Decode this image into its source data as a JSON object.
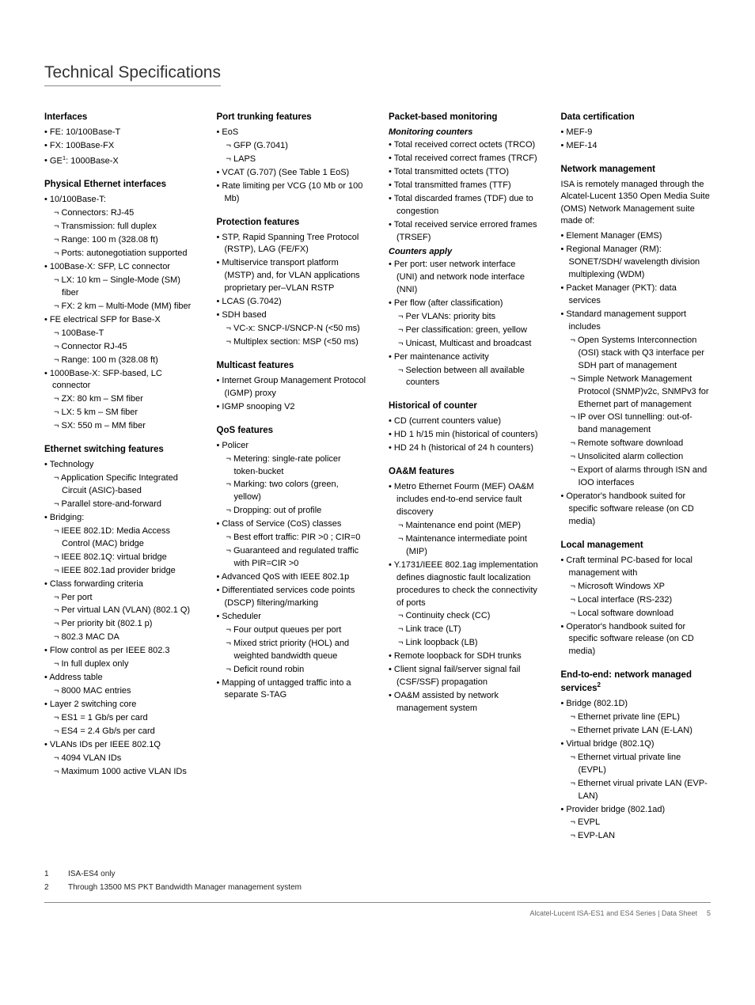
{
  "title": "Technical Specifications",
  "columns": [
    [
      {
        "type": "h1",
        "text": "Interfaces"
      },
      {
        "type": "b",
        "text": "FE: 10/100Base-T"
      },
      {
        "type": "b",
        "text": "FX: 100Base-FX"
      },
      {
        "type": "b",
        "html": "GE<sup>1</sup>: 1000Base-X"
      },
      {
        "type": "h1",
        "text": "Physical Ethernet interfaces"
      },
      {
        "type": "b",
        "text": "10/100Base-T:"
      },
      {
        "type": "s",
        "text": "Connectors: RJ-45"
      },
      {
        "type": "s",
        "text": "Transmission: full duplex"
      },
      {
        "type": "s",
        "text": "Range: 100 m (328.08 ft)"
      },
      {
        "type": "s",
        "text": "Ports: autonegotiation supported"
      },
      {
        "type": "b",
        "text": "100Base-X: SFP, LC connector"
      },
      {
        "type": "s",
        "text": "LX: 10 km – Single-Mode (SM) fiber"
      },
      {
        "type": "s",
        "text": "FX: 2 km – Multi-Mode (MM) fiber"
      },
      {
        "type": "b",
        "text": "FE electrical SFP for Base-X"
      },
      {
        "type": "s",
        "text": "100Base-T"
      },
      {
        "type": "s",
        "text": "Connector RJ-45"
      },
      {
        "type": "s",
        "text": "Range: 100 m (328.08 ft)"
      },
      {
        "type": "b",
        "text": "1000Base-X: SFP-based, LC connector"
      },
      {
        "type": "s",
        "text": "ZX: 80 km – SM fiber"
      },
      {
        "type": "s",
        "text": "LX: 5 km – SM fiber"
      },
      {
        "type": "s",
        "text": "SX: 550 m – MM fiber"
      },
      {
        "type": "h1",
        "text": "Ethernet switching features"
      },
      {
        "type": "b",
        "text": "Technology"
      },
      {
        "type": "s",
        "text": "Application Specific Integrated Circuit (ASIC)-based"
      },
      {
        "type": "s",
        "text": "Parallel store-and-forward"
      },
      {
        "type": "b",
        "text": "Bridging:"
      },
      {
        "type": "s",
        "text": "IEEE 802.1D: Media Access Control (MAC) bridge"
      },
      {
        "type": "s",
        "text": "IEEE 802.1Q: virtual bridge"
      },
      {
        "type": "s",
        "text": "IEEE 802.1ad provider bridge"
      },
      {
        "type": "b",
        "text": "Class forwarding criteria"
      },
      {
        "type": "s",
        "text": "Per port"
      },
      {
        "type": "s",
        "text": "Per virtual LAN (VLAN) (802.1 Q)"
      },
      {
        "type": "s",
        "text": "Per priority bit (802.1 p)"
      },
      {
        "type": "s",
        "text": "802.3 MAC DA"
      },
      {
        "type": "b",
        "text": "Flow control as per IEEE 802.3"
      },
      {
        "type": "s",
        "text": "In full duplex only"
      },
      {
        "type": "b",
        "text": "Address table"
      },
      {
        "type": "s",
        "text": "8000 MAC entries"
      },
      {
        "type": "b",
        "text": "Layer 2 switching core"
      },
      {
        "type": "s",
        "text": "ES1 = 1 Gb/s per card"
      },
      {
        "type": "s",
        "text": "ES4 = 2.4 Gb/s per card"
      },
      {
        "type": "b",
        "text": "VLANs IDs per IEEE 802.1Q"
      },
      {
        "type": "s",
        "text": "4094 VLAN IDs"
      },
      {
        "type": "s",
        "text": "Maximum 1000 active VLAN IDs"
      }
    ],
    [
      {
        "type": "h1",
        "text": "Port trunking features"
      },
      {
        "type": "b",
        "text": "EoS"
      },
      {
        "type": "s",
        "text": "GFP (G.7041)"
      },
      {
        "type": "s",
        "text": "LAPS"
      },
      {
        "type": "b",
        "text": "VCAT (G.707) (See Table 1 EoS)"
      },
      {
        "type": "b",
        "text": "Rate limiting per VCG (10 Mb or 100 Mb)"
      },
      {
        "type": "h1",
        "text": "Protection features"
      },
      {
        "type": "b",
        "text": "STP, Rapid Spanning Tree Protocol (RSTP), LAG (FE/FX)"
      },
      {
        "type": "b",
        "text": "Multiservice transport platform (MSTP) and, for VLAN applications proprietary per–VLAN RSTP"
      },
      {
        "type": "b",
        "text": "LCAS (G.7042)"
      },
      {
        "type": "b",
        "text": "SDH based"
      },
      {
        "type": "s",
        "text": "VC-x: SNCP-I/SNCP-N (<50 ms)"
      },
      {
        "type": "s",
        "text": "Multiplex section: MSP (<50 ms)"
      },
      {
        "type": "h1",
        "text": "Multicast features"
      },
      {
        "type": "b",
        "text": "Internet Group Management Protocol (IGMP) proxy"
      },
      {
        "type": "b",
        "text": "IGMP snooping V2"
      },
      {
        "type": "h1",
        "text": "QoS features"
      },
      {
        "type": "b",
        "text": "Policer"
      },
      {
        "type": "s",
        "text": "Metering: single-rate policer token-bucket"
      },
      {
        "type": "s",
        "text": "Marking: two colors (green, yellow)"
      },
      {
        "type": "s",
        "text": "Dropping: out of profile"
      },
      {
        "type": "b",
        "text": "Class of Service (CoS) classes"
      },
      {
        "type": "s",
        "text": "Best effort traffic: PIR >0 ; CIR=0"
      },
      {
        "type": "s",
        "text": "Guaranteed and regulated traffic with PIR=CIR >0"
      },
      {
        "type": "b",
        "text": "Advanced QoS with IEEE 802.1p"
      },
      {
        "type": "b",
        "text": "Differentiated services code points (DSCP) filtering/marking"
      },
      {
        "type": "b",
        "text": "Scheduler"
      },
      {
        "type": "s",
        "text": "Four output queues per port"
      },
      {
        "type": "s",
        "text": "Mixed strict priority (HOL) and weighted bandwidth queue"
      },
      {
        "type": "s",
        "text": "Deficit round robin"
      },
      {
        "type": "b",
        "text": "Mapping of untagged traffic into a separate S-TAG"
      }
    ],
    [
      {
        "type": "h1",
        "text": "Packet-based monitoring"
      },
      {
        "type": "h2",
        "text": "Monitoring counters"
      },
      {
        "type": "b",
        "text": "Total received correct octets (TRCO)"
      },
      {
        "type": "b",
        "text": "Total received correct frames (TRCF)"
      },
      {
        "type": "b",
        "text": "Total transmitted octets (TTO)"
      },
      {
        "type": "b",
        "text": "Total transmitted frames (TTF)"
      },
      {
        "type": "b",
        "text": "Total discarded frames (TDF) due to congestion"
      },
      {
        "type": "b",
        "text": "Total received service errored frames (TRSEF)"
      },
      {
        "type": "h2",
        "text": "Counters apply"
      },
      {
        "type": "b",
        "text": "Per port: user network interface (UNI) and network node interface (NNI)"
      },
      {
        "type": "b",
        "text": "Per flow (after classification)"
      },
      {
        "type": "s",
        "text": "Per VLANs: priority bits"
      },
      {
        "type": "s",
        "text": "Per classification: green, yellow"
      },
      {
        "type": "s",
        "text": "Unicast, Multicast and broadcast"
      },
      {
        "type": "b",
        "text": "Per maintenance activity"
      },
      {
        "type": "s",
        "text": "Selection between all available counters"
      },
      {
        "type": "h1",
        "text": "Historical of counter"
      },
      {
        "type": "b",
        "text": "CD (current counters value)"
      },
      {
        "type": "b",
        "text": "HD 1 h/15 min (historical of counters)"
      },
      {
        "type": "b",
        "text": "HD 24 h (historical of 24 h counters)"
      },
      {
        "type": "h1",
        "text": "OA&M features"
      },
      {
        "type": "b",
        "text": "Metro Ethernet Fourm (MEF) OA&M includes end-to-end service fault discovery"
      },
      {
        "type": "s",
        "text": "Maintenance end point (MEP)"
      },
      {
        "type": "s",
        "text": "Maintenance intermediate point (MIP)"
      },
      {
        "type": "b",
        "text": "Y.1731/IEEE 802.1ag implementation defines diagnostic fault localization procedures to check the connectivity of ports"
      },
      {
        "type": "s",
        "text": "Continuity check (CC)"
      },
      {
        "type": "s",
        "text": "Link trace (LT)"
      },
      {
        "type": "s",
        "text": "Link loopback (LB)"
      },
      {
        "type": "b",
        "text": "Remote loopback for SDH trunks"
      },
      {
        "type": "b",
        "text": "Client signal fail/server signal fail (CSF/SSF) propagation"
      },
      {
        "type": "b",
        "text": "OA&M assisted by network management system"
      }
    ],
    [
      {
        "type": "h1",
        "text": "Data certification"
      },
      {
        "type": "b",
        "text": "MEF-9"
      },
      {
        "type": "b",
        "text": "MEF-14"
      },
      {
        "type": "h1",
        "text": "Network management"
      },
      {
        "type": "intro",
        "text": "ISA is remotely managed through the Alcatel-Lucent 1350 Open Media Suite (OMS) Network Management suite made of:"
      },
      {
        "type": "b",
        "text": "Element Manager (EMS)"
      },
      {
        "type": "b",
        "text": "Regional Manager (RM): SONET/SDH/ wavelength division multiplexing (WDM)"
      },
      {
        "type": "b",
        "text": "Packet Manager (PKT): data services"
      },
      {
        "type": "b",
        "text": "Standard management support includes"
      },
      {
        "type": "s",
        "text": "Open Systems Interconnection (OSI) stack with Q3 interface per SDH part of management"
      },
      {
        "type": "s",
        "text": "Simple Network Management Protocol (SNMP)v2c, SNMPv3 for Ethernet part of management"
      },
      {
        "type": "s",
        "text": "IP over OSI tunnelling: out-of-band management"
      },
      {
        "type": "s",
        "text": "Remote software download"
      },
      {
        "type": "s",
        "text": "Unsolicited alarm collection"
      },
      {
        "type": "s",
        "text": "Export of alarms through ISN and IOO interfaces"
      },
      {
        "type": "b",
        "text": "Operator's handbook suited for specific software release (on CD media)"
      },
      {
        "type": "h1",
        "text": "Local management"
      },
      {
        "type": "b",
        "text": "Craft terminal PC-based for local management with"
      },
      {
        "type": "s",
        "text": "Microsoft Windows XP"
      },
      {
        "type": "s",
        "text": "Local interface (RS-232)"
      },
      {
        "type": "s",
        "text": "Local software download"
      },
      {
        "type": "b",
        "text": "Operator's handbook suited for specific software release (on CD media)"
      },
      {
        "type": "h1",
        "html": "End-to-end: network managed services<sup>2</sup>"
      },
      {
        "type": "b",
        "text": "Bridge (802.1D)"
      },
      {
        "type": "s",
        "text": "Ethernet private line (EPL)"
      },
      {
        "type": "s",
        "text": "Ethernet private LAN (E-LAN)"
      },
      {
        "type": "b",
        "text": "Virtual bridge (802.1Q)"
      },
      {
        "type": "s",
        "text": "Ethernet virtual private line (EVPL)"
      },
      {
        "type": "s",
        "text": "Ethernet virual private LAN (EVP-LAN)"
      },
      {
        "type": "b",
        "text": "Provider bridge (802.1ad)"
      },
      {
        "type": "s",
        "text": "EVPL"
      },
      {
        "type": "s",
        "text": "EVP-LAN"
      }
    ]
  ],
  "footnotes": [
    {
      "num": "1",
      "text": "ISA-ES4 only"
    },
    {
      "num": "2",
      "text": "Through 13500 MS PKT Bandwidth Manager management system"
    }
  ],
  "footer": {
    "doc": "Alcatel-Lucent ISA-ES1 and ES4 Series   |   Data Sheet",
    "page": "5"
  }
}
